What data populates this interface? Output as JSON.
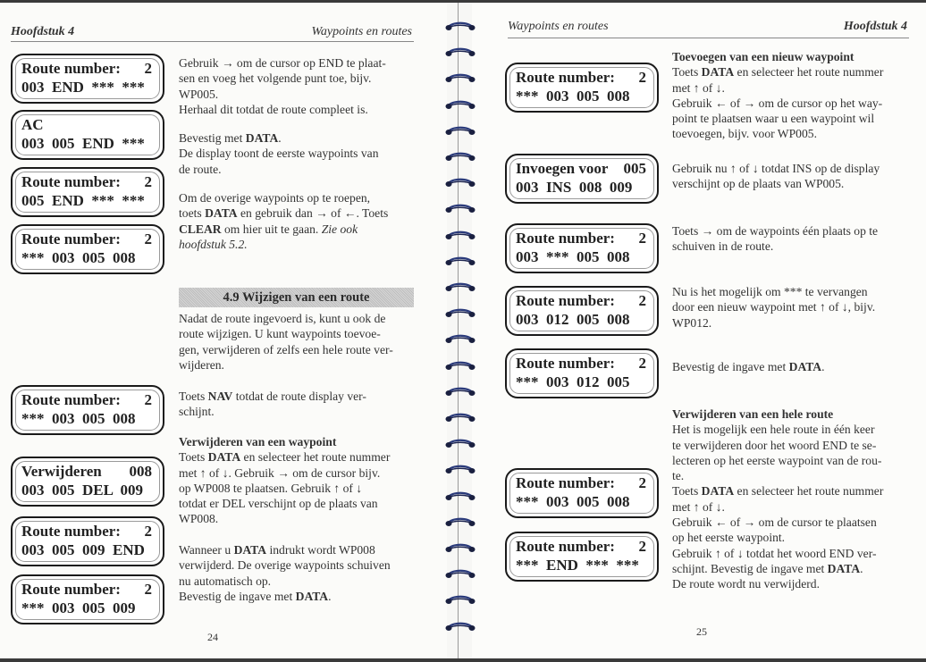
{
  "left_page": {
    "header_left": "Hoofdstuk 4",
    "header_right": "Waypoints en routes",
    "page_number": "24",
    "section_title": "4.9 Wijzigen van een route",
    "displays": [
      {
        "label": "Route number:",
        "value": "2",
        "line2": "003  END  ***  ***"
      },
      {
        "label": "AC",
        "value": "",
        "line2": "003  005  END  ***"
      },
      {
        "label": "Route number:",
        "value": "2",
        "line2": "005  END  ***  ***"
      },
      {
        "label": "Route number:",
        "value": "2",
        "line2": "***  003  005  008"
      },
      {
        "label": "Route number:",
        "value": "2",
        "line2": "***  003  005  008"
      },
      {
        "label": "Verwijderen",
        "value": "008",
        "line2": "003  005  DEL  009"
      },
      {
        "label": "Route number:",
        "value": "2",
        "line2": "003  005  009  END"
      },
      {
        "label": "Route number:",
        "value": "2",
        "line2": "***  003  005  009"
      }
    ],
    "paragraphs": [
      [
        [
          {
            "t": "Gebruik → om de cursor op END te plaat-"
          }
        ],
        [
          {
            "t": "sen en voeg het volgende punt toe, bijv."
          }
        ],
        [
          {
            "t": "WP005."
          }
        ],
        [
          {
            "t": "Herhaal dit totdat de route compleet is."
          }
        ]
      ],
      [
        [
          {
            "t": "Bevestig met "
          },
          {
            "t": "DATA",
            "b": true
          },
          {
            "t": "."
          }
        ],
        [
          {
            "t": "De display toont de eerste waypoints van"
          }
        ],
        [
          {
            "t": "de route."
          }
        ]
      ],
      [
        [
          {
            "t": "Om de overige waypoints op te roepen,"
          }
        ],
        [
          {
            "t": "toets "
          },
          {
            "t": "DATA",
            "b": true
          },
          {
            "t": " en gebruik dan → of ←. Toets"
          }
        ],
        [
          {
            "t": "CLEAR",
            "b": true
          },
          {
            "t": " om hier uit te gaan. "
          },
          {
            "t": "Zie ook",
            "i": true
          }
        ],
        [
          {
            "t": "hoofdstuk 5.2.",
            "i": true
          }
        ]
      ],
      [
        [
          {
            "t": "Nadat de route ingevoerd is, kunt u ook de"
          }
        ],
        [
          {
            "t": "route wijzigen. U kunt waypoints toevoe-"
          }
        ],
        [
          {
            "t": "gen, verwijderen of zelfs een hele route ver-"
          }
        ],
        [
          {
            "t": "wijderen."
          }
        ]
      ],
      [
        [
          {
            "t": "Toets "
          },
          {
            "t": "NAV",
            "b": true
          },
          {
            "t": " totdat de route display ver-"
          }
        ],
        [
          {
            "t": "schijnt."
          }
        ]
      ],
      [
        [
          {
            "t": "Verwijderen van een waypoint",
            "b": true
          }
        ],
        [
          {
            "t": "Toets "
          },
          {
            "t": "DATA",
            "b": true
          },
          {
            "t": " en selecteer het route nummer"
          }
        ],
        [
          {
            "t": "met ↑ of ↓. Gebruik → om de cursor bijv."
          }
        ],
        [
          {
            "t": "op WP008 te plaatsen. Gebruik ↑ of ↓"
          }
        ],
        [
          {
            "t": "totdat er DEL verschijnt op de plaats van"
          }
        ],
        [
          {
            "t": "WP008."
          }
        ]
      ],
      [
        [
          {
            "t": "Wanneer u "
          },
          {
            "t": "DATA",
            "b": true
          },
          {
            "t": " indrukt wordt WP008"
          }
        ],
        [
          {
            "t": "verwijderd. De overige waypoints schuiven"
          }
        ],
        [
          {
            "t": "nu automatisch op."
          }
        ],
        [
          {
            "t": "Bevestig de ingave met "
          },
          {
            "t": "DATA",
            "b": true
          },
          {
            "t": "."
          }
        ]
      ]
    ]
  },
  "right_page": {
    "header_left": "Waypoints en routes",
    "header_right": "Hoofdstuk 4",
    "page_number": "25",
    "displays": [
      {
        "label": "Route number:",
        "value": "2",
        "line2": "***  003  005  008"
      },
      {
        "label": "Invoegen voor",
        "value": "005",
        "line2": "003  INS  008  009"
      },
      {
        "label": "Route number:",
        "value": "2",
        "line2": "003  ***  005  008"
      },
      {
        "label": "Route number:",
        "value": "2",
        "line2": "003  012  005  008"
      },
      {
        "label": "Route number:",
        "value": "2",
        "line2": "***  003  012  005"
      },
      {
        "label": "Route number:",
        "value": "2",
        "line2": "***  003  005  008"
      },
      {
        "label": "Route number:",
        "value": "2",
        "line2": "***  END  ***  ***"
      }
    ],
    "paragraphs": [
      [
        [
          {
            "t": "Toevoegen van een nieuw waypoint",
            "b": true
          }
        ],
        [
          {
            "t": "Toets "
          },
          {
            "t": "DATA",
            "b": true
          },
          {
            "t": " en selecteer het route nummer"
          }
        ],
        [
          {
            "t": "met ↑ of ↓."
          }
        ],
        [
          {
            "t": "Gebruik ← of → om de cursor op het way-"
          }
        ],
        [
          {
            "t": "point te plaatsen waar u een waypoint wil"
          }
        ],
        [
          {
            "t": "toevoegen, bijv. voor WP005."
          }
        ]
      ],
      [
        [
          {
            "t": "Gebruik nu ↑ of ↓ totdat INS op de display"
          }
        ],
        [
          {
            "t": "verschijnt op de plaats van WP005."
          }
        ]
      ],
      [
        [
          {
            "t": "Toets → om de waypoints één plaats op te"
          }
        ],
        [
          {
            "t": "schuiven in de route."
          }
        ]
      ],
      [
        [
          {
            "t": "Nu is het mogelijk om *** te vervangen"
          }
        ],
        [
          {
            "t": "door een nieuw waypoint met ↑ of ↓, bijv."
          }
        ],
        [
          {
            "t": "WP012."
          }
        ]
      ],
      [
        [
          {
            "t": "Bevestig de ingave met "
          },
          {
            "t": "DATA",
            "b": true
          },
          {
            "t": "."
          }
        ]
      ],
      [
        [
          {
            "t": "Verwijderen van een hele route",
            "b": true
          }
        ],
        [
          {
            "t": "Het is mogelijk een hele route in één keer"
          }
        ],
        [
          {
            "t": "te verwijderen door het woord END te se-"
          }
        ],
        [
          {
            "t": "lecteren op het eerste waypoint van de rou-"
          }
        ],
        [
          {
            "t": "te."
          }
        ],
        [
          {
            "t": "Toets "
          },
          {
            "t": "DATA",
            "b": true
          },
          {
            "t": " en selecteer het route nummer"
          }
        ],
        [
          {
            "t": "met ↑ of ↓."
          }
        ],
        [
          {
            "t": "Gebruik ← of → om de cursor te plaatsen"
          }
        ],
        [
          {
            "t": "op het eerste waypoint."
          }
        ],
        [
          {
            "t": "Gebruik ↑ of ↓ totdat het woord END ver-"
          }
        ],
        [
          {
            "t": "schijnt. Bevestig de ingave met "
          },
          {
            "t": "DATA",
            "b": true
          },
          {
            "t": "."
          }
        ],
        [
          {
            "t": "De route wordt nu verwijderd."
          }
        ]
      ]
    ]
  },
  "colors": {
    "binding": "#2a3a7a",
    "paper": "#fbfbf9",
    "ink": "#2a2a2a"
  }
}
